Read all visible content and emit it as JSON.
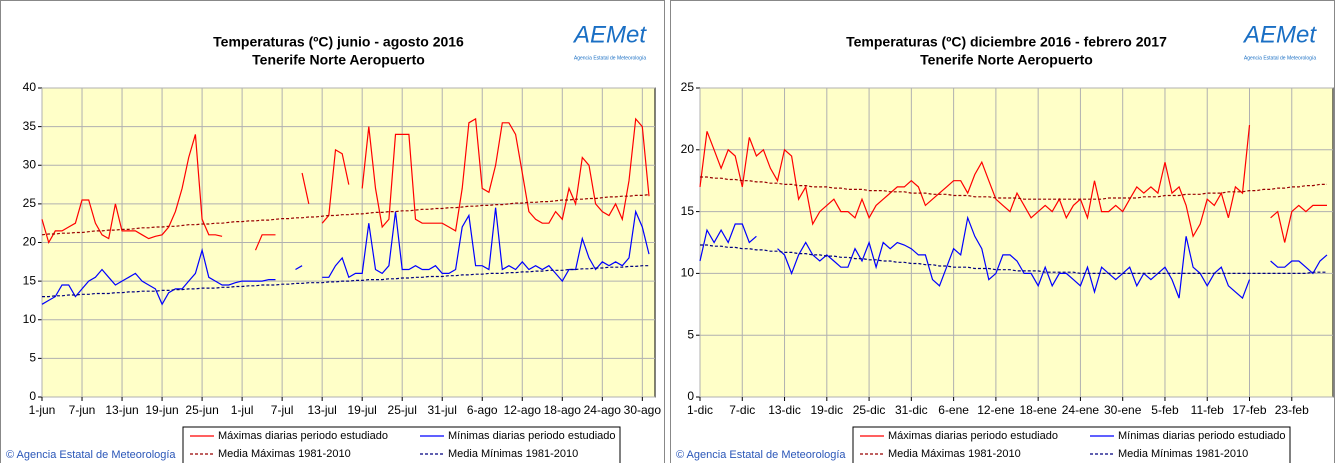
{
  "chart_data": [
    {
      "type": "line",
      "title": "Temperaturas (ºC) junio - agosto 2016",
      "subtitle": "Tenerife Norte Aeropuerto",
      "logo": "AEMet",
      "logo_subtitle": "Agencia Estatal de Meteorología",
      "footer": "© Agencia Estatal de Meteorología",
      "categories": [
        "1-jun",
        null,
        null,
        null,
        null,
        null,
        "7-jun",
        null,
        null,
        null,
        null,
        null,
        "13-jun",
        null,
        null,
        null,
        null,
        null,
        "19-jun",
        null,
        null,
        null,
        null,
        null,
        "25-jun",
        null,
        null,
        null,
        null,
        null,
        "1-jul",
        null,
        null,
        null,
        null,
        null,
        "7-jul",
        null,
        null,
        null,
        null,
        null,
        "13-jul",
        null,
        null,
        null,
        null,
        null,
        "19-jul",
        null,
        null,
        null,
        null,
        null,
        "25-jul",
        null,
        null,
        null,
        null,
        null,
        "31-jul",
        null,
        null,
        null,
        null,
        null,
        "6-ago",
        null,
        null,
        null,
        null,
        null,
        "12-ago",
        null,
        null,
        null,
        null,
        null,
        "18-ago",
        null,
        null,
        null,
        null,
        null,
        "24-ago",
        null,
        null,
        null,
        null,
        null,
        "30-ago",
        null
      ],
      "ylim": [
        0,
        40
      ],
      "yticks": [
        0,
        5,
        10,
        15,
        20,
        25,
        30,
        35,
        40
      ],
      "grid": true,
      "series": [
        {
          "name": "Máximas diarias periodo estudiado",
          "color": "#ff0000",
          "dashed": false,
          "values": [
            23,
            20,
            21.5,
            21.5,
            22,
            22.5,
            25.5,
            25.5,
            22.5,
            21,
            20.5,
            25,
            21.5,
            21.5,
            21.5,
            21,
            20.5,
            20.8,
            21,
            22,
            24,
            27,
            31,
            34,
            23,
            21,
            21,
            20.8,
            null,
            null,
            null,
            null,
            19,
            21,
            21,
            21,
            null,
            null,
            null,
            29,
            25,
            null,
            22.5,
            23.5,
            32,
            31.5,
            27.5,
            null,
            27,
            35,
            27,
            22,
            23,
            34,
            34,
            34,
            23,
            22.5,
            22.5,
            22.5,
            22.5,
            22,
            21.5,
            27,
            35.5,
            36,
            27,
            26.5,
            30,
            35.5,
            35.5,
            34,
            29,
            24,
            23,
            22.5,
            22.5,
            24,
            23,
            27,
            25,
            31,
            30,
            25,
            24,
            23.5,
            25,
            23,
            28,
            36,
            35,
            26
          ]
        },
        {
          "name": "Mínimas diarias periodo estudiado",
          "color": "#0000ff",
          "dashed": false,
          "values": [
            12,
            12.5,
            13,
            14.5,
            14.5,
            13,
            14,
            15,
            15.5,
            16.5,
            15.5,
            14.5,
            15,
            15.5,
            16,
            15,
            14.5,
            14,
            12,
            13.5,
            14,
            14,
            15,
            16,
            19,
            15.5,
            15,
            14.5,
            14.5,
            14.8,
            15,
            15,
            15,
            15,
            15.2,
            15.2,
            null,
            null,
            16.5,
            17,
            null,
            null,
            15.5,
            15.5,
            17,
            18,
            15.5,
            16,
            16,
            22.5,
            16.5,
            16,
            17,
            24,
            16.5,
            16.5,
            17,
            16.5,
            16.5,
            17,
            16,
            16,
            16.5,
            22,
            23.5,
            17,
            17,
            16.5,
            24.5,
            16.5,
            17,
            16.5,
            17.5,
            16.5,
            17,
            16.5,
            17,
            16,
            15,
            16.5,
            16.5,
            20.5,
            18,
            16.5,
            17.5,
            17,
            17.5,
            17,
            18,
            24,
            22,
            18.5
          ]
        },
        {
          "name": "Media Máximas 1981-2010",
          "color": "#990000",
          "dashed": true,
          "values": [
            21.0,
            21.1,
            21.1,
            21.2,
            21.2,
            21.3,
            21.3,
            21.4,
            21.5,
            21.5,
            21.6,
            21.6,
            21.7,
            21.7,
            21.8,
            21.9,
            21.9,
            22.0,
            22.0,
            22.1,
            22.1,
            22.2,
            22.3,
            22.3,
            22.4,
            22.4,
            22.5,
            22.5,
            22.6,
            22.7,
            22.7,
            22.8,
            22.8,
            22.9,
            22.9,
            23.0,
            23.1,
            23.1,
            23.2,
            23.2,
            23.3,
            23.3,
            23.4,
            23.5,
            23.5,
            23.6,
            23.6,
            23.7,
            23.7,
            23.8,
            23.9,
            23.9,
            24.0,
            24.0,
            24.1,
            24.1,
            24.2,
            24.3,
            24.3,
            24.4,
            24.4,
            24.5,
            24.5,
            24.6,
            24.7,
            24.7,
            24.8,
            24.8,
            24.9,
            24.9,
            25.0,
            25.1,
            25.1,
            25.2,
            25.2,
            25.3,
            25.3,
            25.4,
            25.5,
            25.5,
            25.6,
            25.6,
            25.7,
            25.7,
            25.8,
            25.9,
            25.9,
            26.0,
            26.0,
            26.1,
            26.1,
            26.2
          ]
        },
        {
          "name": "Media Mínimas 1981-2010",
          "color": "#000080",
          "dashed": true,
          "values": [
            13.0,
            13.0,
            13.1,
            13.1,
            13.2,
            13.2,
            13.3,
            13.3,
            13.4,
            13.4,
            13.4,
            13.5,
            13.5,
            13.6,
            13.6,
            13.7,
            13.7,
            13.7,
            13.8,
            13.8,
            13.9,
            13.9,
            14.0,
            14.0,
            14.1,
            14.1,
            14.1,
            14.2,
            14.2,
            14.3,
            14.3,
            14.4,
            14.4,
            14.5,
            14.5,
            14.5,
            14.6,
            14.6,
            14.7,
            14.7,
            14.8,
            14.8,
            14.8,
            14.9,
            14.9,
            15.0,
            15.0,
            15.1,
            15.1,
            15.2,
            15.2,
            15.2,
            15.3,
            15.3,
            15.4,
            15.4,
            15.5,
            15.5,
            15.6,
            15.6,
            15.6,
            15.7,
            15.7,
            15.8,
            15.8,
            15.9,
            15.9,
            16.0,
            16.0,
            16.0,
            16.1,
            16.1,
            16.2,
            16.2,
            16.3,
            16.3,
            16.4,
            16.4,
            16.4,
            16.5,
            16.5,
            16.6,
            16.6,
            16.7,
            16.7,
            16.8,
            16.8,
            16.8,
            16.9,
            16.9,
            17.0,
            17.0
          ]
        }
      ]
    },
    {
      "type": "line",
      "title": "Temperaturas (ºC) diciembre 2016 - febrero 2017",
      "subtitle": "Tenerife Norte Aeropuerto",
      "logo": "AEMet",
      "logo_subtitle": "Agencia Estatal de Meteorología",
      "footer": "© Agencia Estatal de Meteorología",
      "categories": [
        "1-dic",
        null,
        null,
        null,
        null,
        null,
        "7-dic",
        null,
        null,
        null,
        null,
        null,
        "13-dic",
        null,
        null,
        null,
        null,
        null,
        "19-dic",
        null,
        null,
        null,
        null,
        null,
        "25-dic",
        null,
        null,
        null,
        null,
        null,
        "31-dic",
        null,
        null,
        null,
        null,
        null,
        "6-ene",
        null,
        null,
        null,
        null,
        null,
        "12-ene",
        null,
        null,
        null,
        null,
        null,
        "18-ene",
        null,
        null,
        null,
        null,
        null,
        "24-ene",
        null,
        null,
        null,
        null,
        null,
        "30-ene",
        null,
        null,
        null,
        null,
        null,
        "5-feb",
        null,
        null,
        null,
        null,
        null,
        "11-feb",
        null,
        null,
        null,
        null,
        null,
        "17-feb",
        null,
        null,
        null,
        null,
        null,
        "23-feb",
        null,
        null,
        null,
        null,
        null
      ],
      "ylim": [
        0,
        25
      ],
      "yticks": [
        0,
        5,
        10,
        15,
        20,
        25
      ],
      "grid": true,
      "series": [
        {
          "name": "Máximas diarias periodo estudiado",
          "color": "#ff0000",
          "dashed": false,
          "values": [
            17,
            21.5,
            20,
            18.5,
            20,
            19.5,
            17,
            21,
            19.5,
            20,
            18.5,
            17.5,
            20,
            19.5,
            16,
            17,
            14,
            15,
            15.5,
            16,
            15,
            15,
            14.5,
            16,
            14.5,
            15.5,
            16,
            16.5,
            17,
            17,
            17.5,
            17,
            15.5,
            16,
            16.5,
            17,
            17.5,
            17.5,
            16.5,
            18,
            19,
            17.5,
            16,
            15.5,
            15,
            16.5,
            15.5,
            14.5,
            15,
            15.5,
            15,
            16,
            14.5,
            15.5,
            16,
            14.5,
            17.5,
            15,
            15,
            15.5,
            15,
            16,
            17,
            16.5,
            17,
            16.5,
            19,
            16.5,
            17,
            15.5,
            13,
            14,
            16,
            15.5,
            16.5,
            14.5,
            17,
            16.5,
            22,
            null,
            null,
            14.5,
            15,
            12.5,
            15,
            15.5,
            15,
            15.5,
            15.5,
            15.5
          ]
        },
        {
          "name": "Mínimas diarias periodo estudiado",
          "color": "#0000ff",
          "dashed": false,
          "values": [
            11,
            13.5,
            12.5,
            13.5,
            12.5,
            14,
            14,
            12.5,
            13,
            null,
            null,
            12,
            11.5,
            10,
            11.5,
            12.5,
            11.5,
            11,
            11.5,
            11,
            10.5,
            10.5,
            12,
            11,
            12.5,
            10.5,
            12.5,
            12,
            12.5,
            12.3,
            12,
            11.5,
            11.5,
            9.5,
            9,
            10.5,
            12,
            11.5,
            14.5,
            13,
            12,
            9.5,
            10,
            11.5,
            11.5,
            11,
            10,
            10,
            9,
            10.5,
            9,
            10,
            10,
            9.5,
            9,
            10.5,
            8.5,
            10.5,
            10,
            9.5,
            10,
            10.5,
            9,
            10,
            9.5,
            10,
            10.5,
            9.5,
            8,
            13,
            10.5,
            10,
            9,
            10,
            10.5,
            9,
            8.5,
            8,
            9.5,
            null,
            null,
            11,
            10.5,
            10.5,
            11,
            11,
            10.5,
            10,
            11,
            11.5
          ]
        },
        {
          "name": "Media Máximas 1981-2010",
          "color": "#990000",
          "dashed": true,
          "values": [
            17.8,
            17.8,
            17.7,
            17.7,
            17.6,
            17.6,
            17.5,
            17.5,
            17.4,
            17.4,
            17.3,
            17.3,
            17.2,
            17.2,
            17.1,
            17.1,
            17.0,
            17.0,
            17.0,
            16.9,
            16.9,
            16.8,
            16.8,
            16.8,
            16.7,
            16.7,
            16.7,
            16.6,
            16.6,
            16.6,
            16.5,
            16.5,
            16.5,
            16.4,
            16.4,
            16.4,
            16.3,
            16.3,
            16.3,
            16.2,
            16.2,
            16.2,
            16.1,
            16.1,
            16.1,
            16.1,
            16.0,
            16.0,
            16.0,
            16.0,
            16.0,
            16.0,
            16.0,
            16.0,
            16.0,
            16.0,
            16.0,
            16.0,
            16.1,
            16.1,
            16.1,
            16.1,
            16.1,
            16.2,
            16.2,
            16.2,
            16.3,
            16.3,
            16.3,
            16.4,
            16.4,
            16.4,
            16.5,
            16.5,
            16.5,
            16.6,
            16.6,
            16.6,
            16.7,
            16.7,
            16.8,
            16.8,
            16.9,
            16.9,
            17.0,
            17.0,
            17.1,
            17.1,
            17.2,
            17.2
          ]
        },
        {
          "name": "Media Mínimas 1981-2010",
          "color": "#000080",
          "dashed": true,
          "values": [
            12.3,
            12.3,
            12.2,
            12.2,
            12.1,
            12.1,
            12.0,
            12.0,
            11.9,
            11.9,
            11.8,
            11.8,
            11.7,
            11.7,
            11.6,
            11.6,
            11.5,
            11.5,
            11.4,
            11.4,
            11.3,
            11.3,
            11.2,
            11.2,
            11.1,
            11.1,
            11.0,
            11.0,
            10.9,
            10.9,
            10.8,
            10.8,
            10.7,
            10.7,
            10.6,
            10.6,
            10.5,
            10.5,
            10.5,
            10.4,
            10.4,
            10.4,
            10.3,
            10.3,
            10.3,
            10.2,
            10.2,
            10.2,
            10.2,
            10.1,
            10.1,
            10.1,
            10.1,
            10.1,
            10.0,
            10.0,
            10.0,
            10.0,
            10.0,
            10.0,
            10.0,
            10.0,
            10.0,
            10.0,
            10.0,
            10.0,
            10.0,
            10.0,
            10.0,
            10.0,
            10.0,
            10.0,
            10.0,
            10.0,
            10.0,
            10.0,
            10.0,
            10.0,
            10.0,
            10.0,
            10.0,
            10.0,
            10.0,
            10.0,
            10.0,
            10.0,
            10.0,
            10.1,
            10.1,
            10.1
          ]
        }
      ]
    }
  ]
}
